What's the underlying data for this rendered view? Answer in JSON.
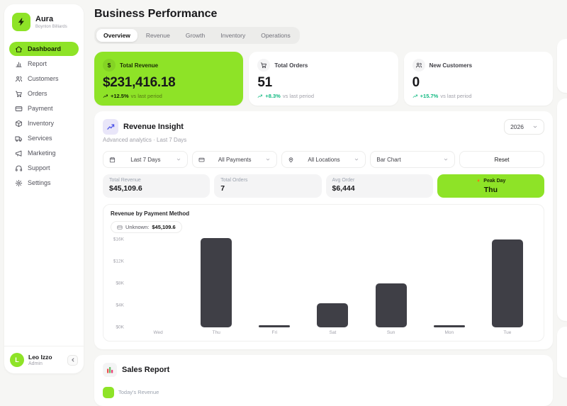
{
  "app": {
    "name": "Aura",
    "tagline": "Boynton Billiards"
  },
  "sidebar": {
    "items": [
      {
        "label": "Dashboard",
        "icon": "home",
        "active": true
      },
      {
        "label": "Report",
        "icon": "report",
        "active": false
      },
      {
        "label": "Customers",
        "icon": "users",
        "active": false
      },
      {
        "label": "Orders",
        "icon": "cart",
        "active": false
      },
      {
        "label": "Payment",
        "icon": "card",
        "active": false
      },
      {
        "label": "Inventory",
        "icon": "box",
        "active": false
      },
      {
        "label": "Services",
        "icon": "truck",
        "active": false
      },
      {
        "label": "Marketing",
        "icon": "megaphone",
        "active": false
      },
      {
        "label": "Support",
        "icon": "headphones",
        "active": false
      },
      {
        "label": "Settings",
        "icon": "gear",
        "active": false
      }
    ],
    "user": {
      "name": "Leo Izzo",
      "role": "Admin",
      "initial": "L"
    }
  },
  "header": {
    "title": "Business Performance",
    "tabs": [
      {
        "label": "Overview",
        "active": true
      },
      {
        "label": "Revenue",
        "active": false
      },
      {
        "label": "Growth",
        "active": false
      },
      {
        "label": "Inventory",
        "active": false
      },
      {
        "label": "Operations",
        "active": false
      }
    ]
  },
  "stat_cards": [
    {
      "label": "Total Revenue",
      "value": "$231,416.18",
      "trend": "+12.5%",
      "suffix": "vs last period",
      "icon": "dollar",
      "variant": "green"
    },
    {
      "label": "Total Orders",
      "value": "51",
      "trend": "+8.3%",
      "suffix": "vs last period",
      "icon": "cart",
      "variant": "white"
    },
    {
      "label": "New Customers",
      "value": "0",
      "trend": "+15.7%",
      "suffix": "vs last period",
      "icon": "users",
      "variant": "white"
    }
  ],
  "revenue_insight": {
    "title": "Revenue Insight",
    "subtitle": "Advanced analytics · Last 7 Days",
    "year": "2026",
    "filters": [
      {
        "label": "Last 7 Days",
        "icon": "calendar"
      },
      {
        "label": "All Payments",
        "icon": "card"
      },
      {
        "label": "All Locations",
        "icon": "pin"
      },
      {
        "label": "Bar Chart",
        "icon": ""
      }
    ],
    "reset_label": "Reset",
    "mini_stats": [
      {
        "label": "Total Revenue",
        "value": "$45,109.6"
      },
      {
        "label": "Total Orders",
        "value": "7"
      },
      {
        "label": "Avg Order",
        "value": "$6,444"
      }
    ],
    "peak": {
      "label": "Peak Day",
      "value": "Thu"
    },
    "chart_title": "Revenue by Payment Method",
    "legend": {
      "label": "Unknown:",
      "value": "$45,109.6"
    }
  },
  "chart_data": {
    "type": "bar",
    "title": "Revenue by Payment Method",
    "categories": [
      "Wed",
      "Thu",
      "Fri",
      "Sat",
      "Sun",
      "Mon",
      "Tue"
    ],
    "values": [
      0,
      16200,
      350,
      4400,
      8000,
      350,
      16000
    ],
    "yticks": [
      "$16K",
      "$12K",
      "$8K",
      "$4K",
      "$0K"
    ],
    "ylim": [
      0,
      16000
    ],
    "xlabel": "",
    "ylabel": "",
    "grid": false,
    "bar_color": "#3f3f46",
    "legend_entries": [
      "Unknown: $45,109.6"
    ],
    "legend_position": "top-left"
  },
  "sales_report": {
    "title": "Sales Report",
    "next_label": "Today's Revenue"
  },
  "colors": {
    "accent": "#8ee327",
    "bar": "#3f3f46",
    "trend_green": "#10b981",
    "background": "#f6f6f4"
  }
}
